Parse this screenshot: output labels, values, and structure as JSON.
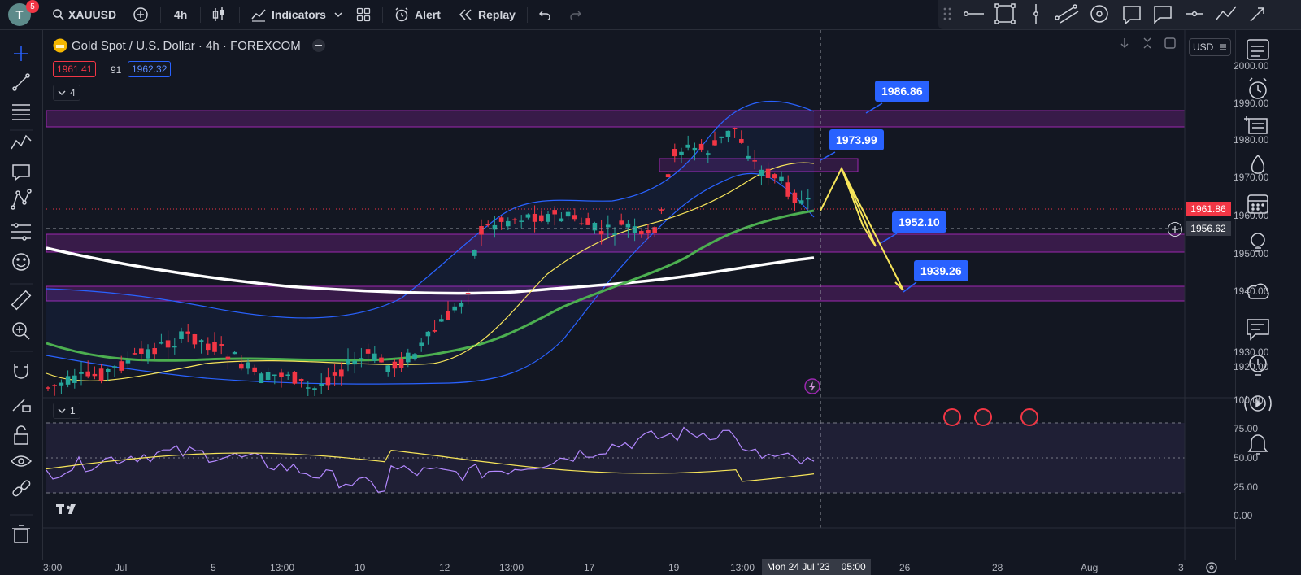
{
  "topbar": {
    "avatar_letter": "T",
    "notifications": "5",
    "symbol": "XAUUSD",
    "interval": "4h",
    "indicators_label": "Indicators",
    "alert_label": "Alert",
    "replay_label": "Replay"
  },
  "legend": {
    "title": "Gold Spot / U.S. Dollar · 4h · FOREXCOM",
    "bid": "1961.41",
    "spread": "91",
    "ask": "1962.32",
    "indicators_count": "4",
    "pane2_count": "1"
  },
  "currency_selector": "USD",
  "price_axis": {
    "labels": [
      "2000.00",
      "1990.00",
      "1980.00",
      "1970.00",
      "1960.00",
      "1950.00",
      "1940.00",
      "1930.00",
      "1920.00"
    ],
    "current_price": "1961.86",
    "crosshair_price": "1956.62"
  },
  "osc_axis": {
    "labels": [
      "100.00",
      "75.00",
      "50.00",
      "25.00",
      "0.00"
    ]
  },
  "time_axis": {
    "labels": [
      "3:00",
      "Jul",
      "5",
      "13:00",
      "10",
      "12",
      "13:00",
      "17",
      "19",
      "13:00",
      "26",
      "28",
      "Aug",
      "3"
    ],
    "crosshair_time": "Mon 24 Jul '23",
    "crosshair_clock": "05:00"
  },
  "annotations": {
    "tag1": "1986.86",
    "tag2": "1973.99",
    "tag3": "1952.10",
    "tag4": "1939.26"
  },
  "colors": {
    "bg": "#131722",
    "up": "#26a69a",
    "down": "#f23645",
    "zone": "#9c27b0",
    "bb": "#2962ff",
    "ma_fast": "#f7e55a",
    "ma_mid": "#4caf50",
    "ma_slow": "#ffffff",
    "rsi": "#b388ff",
    "tag": "#2962ff"
  },
  "icons": {
    "left": [
      "crosshair-icon",
      "trendline-icon",
      "fib-icon",
      "pattern-icon",
      "text-icon",
      "xabcd-icon",
      "gann-icon",
      "emoji-icon",
      "ruler-icon",
      "zoom-icon",
      "magnet-icon",
      "pencil-lock-icon",
      "lock-icon",
      "eye-icon",
      "link-icon",
      "trash-icon"
    ],
    "right": [
      "watchlist-icon",
      "alarm-icon",
      "news-icon",
      "ideas-icon",
      "calendar-icon",
      "bulb-icon",
      "cloud-chat-icon",
      "chat-icon",
      "hint-icon",
      "broadcast-icon",
      "bell-icon"
    ]
  }
}
